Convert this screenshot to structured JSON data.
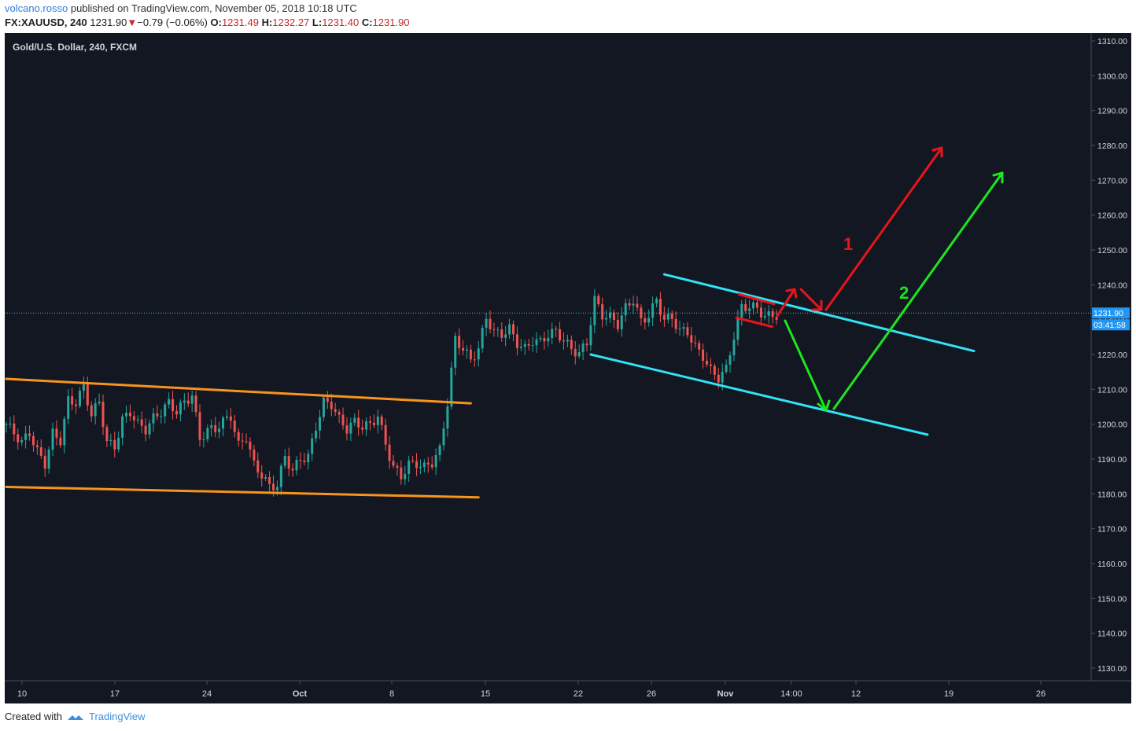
{
  "header": {
    "author": "volcano.rosso",
    "published_text": "published on TradingView.com, November 05, 2018 10:18 UTC",
    "symbol": "FX:XAUUSD, 240",
    "last": "1231.90",
    "change": "−0.79 (−0.06%)",
    "open_label": "O:",
    "open": "1231.49",
    "high_label": "H:",
    "high": "1232.27",
    "low_label": "L:",
    "low": "1231.40",
    "close_label": "C:",
    "close": "1231.90"
  },
  "chart_data": {
    "type": "candlestick",
    "title": "Gold/U.S. Dollar, 240, FXCM",
    "x_tick_labels": [
      "10",
      "17",
      "24",
      "Oct",
      "8",
      "15",
      "22",
      "26",
      "Nov",
      "14:00",
      "12",
      "19",
      "26"
    ],
    "y_tick_labels": [
      1310,
      1300,
      1290,
      1280,
      1270,
      1260,
      1250,
      1240,
      1230,
      1220,
      1210,
      1200,
      1190,
      1180,
      1170,
      1160,
      1150,
      1140,
      1130
    ],
    "ylim": [
      1126,
      1312
    ],
    "last_price": "1231.90",
    "countdown": "03:41:58",
    "price_path": [
      [
        0,
        1200
      ],
      [
        2,
        1197
      ],
      [
        4,
        1194
      ],
      [
        6,
        1197
      ],
      [
        8,
        1192
      ],
      [
        10,
        1189
      ],
      [
        12,
        1198
      ],
      [
        14,
        1196
      ],
      [
        16,
        1207
      ],
      [
        18,
        1206
      ],
      [
        20,
        1210
      ],
      [
        22,
        1202
      ],
      [
        24,
        1206
      ],
      [
        26,
        1195
      ],
      [
        28,
        1194
      ],
      [
        30,
        1202
      ],
      [
        32,
        1204
      ],
      [
        34,
        1200
      ],
      [
        36,
        1198
      ],
      [
        38,
        1201
      ],
      [
        40,
        1203
      ],
      [
        42,
        1206
      ],
      [
        44,
        1204
      ],
      [
        46,
        1207
      ],
      [
        48,
        1209
      ],
      [
        50,
        1196
      ],
      [
        52,
        1198
      ],
      [
        54,
        1198
      ],
      [
        56,
        1200
      ],
      [
        58,
        1202
      ],
      [
        60,
        1194
      ],
      [
        62,
        1197
      ],
      [
        64,
        1189
      ],
      [
        66,
        1186
      ],
      [
        68,
        1182
      ],
      [
        70,
        1182
      ],
      [
        72,
        1190
      ],
      [
        74,
        1186
      ],
      [
        76,
        1190
      ],
      [
        78,
        1191
      ],
      [
        80,
        1200
      ],
      [
        82,
        1207
      ],
      [
        84,
        1206
      ],
      [
        86,
        1201
      ],
      [
        88,
        1198
      ],
      [
        90,
        1200
      ],
      [
        92,
        1199
      ],
      [
        94,
        1200
      ],
      [
        96,
        1203
      ],
      [
        98,
        1195
      ],
      [
        100,
        1188
      ],
      [
        102,
        1185
      ],
      [
        104,
        1188
      ],
      [
        106,
        1188
      ],
      [
        108,
        1187
      ],
      [
        110,
        1189
      ],
      [
        112,
        1193
      ],
      [
        114,
        1207
      ],
      [
        116,
        1225
      ],
      [
        118,
        1222
      ],
      [
        120,
        1218
      ],
      [
        122,
        1221
      ],
      [
        124,
        1230
      ],
      [
        126,
        1226
      ],
      [
        128,
        1226
      ],
      [
        130,
        1228
      ],
      [
        132,
        1224
      ],
      [
        134,
        1222
      ],
      [
        136,
        1224
      ],
      [
        138,
        1223
      ],
      [
        140,
        1225
      ],
      [
        142,
        1226
      ],
      [
        144,
        1224
      ],
      [
        146,
        1222
      ],
      [
        148,
        1221
      ],
      [
        150,
        1224
      ],
      [
        152,
        1236
      ],
      [
        154,
        1231
      ],
      [
        156,
        1230
      ],
      [
        158,
        1228
      ],
      [
        160,
        1233
      ],
      [
        162,
        1236
      ],
      [
        164,
        1230
      ],
      [
        166,
        1232
      ],
      [
        168,
        1236
      ],
      [
        170,
        1230
      ],
      [
        172,
        1230
      ],
      [
        174,
        1226
      ],
      [
        176,
        1226
      ],
      [
        178,
        1222
      ],
      [
        180,
        1220
      ],
      [
        182,
        1216
      ],
      [
        184,
        1214
      ],
      [
        186,
        1216
      ],
      [
        188,
        1225
      ],
      [
        190,
        1233
      ],
      [
        192,
        1233
      ],
      [
        194,
        1233
      ],
      [
        196,
        1231
      ],
      [
        198,
        1232
      ],
      [
        199,
        1231.9
      ]
    ],
    "drawings": [
      {
        "name": "orange-channel-upper",
        "color": "#f7941d",
        "points": [
          [
            0,
            1213
          ],
          [
            120,
            1206
          ]
        ]
      },
      {
        "name": "orange-channel-lower",
        "color": "#f7941d",
        "points": [
          [
            0,
            1182
          ],
          [
            122,
            1179
          ]
        ]
      },
      {
        "name": "cyan-channel-upper",
        "color": "#31e3f5",
        "points": [
          [
            170,
            1243
          ],
          [
            250,
            1221
          ]
        ]
      },
      {
        "name": "cyan-channel-lower",
        "color": "#31e3f5",
        "points": [
          [
            151,
            1220
          ],
          [
            238,
            1197
          ]
        ]
      }
    ],
    "scenarios": [
      {
        "label": "1",
        "color": "#e8141c"
      },
      {
        "label": "2",
        "color": "#1ee61e"
      }
    ]
  },
  "footer": {
    "created_with": "Created with",
    "brand": "TradingView"
  },
  "colors": {
    "background": "#131722",
    "bull": "#26a69a",
    "bear": "#ef5350",
    "axis_text": "#d1d4dc"
  }
}
